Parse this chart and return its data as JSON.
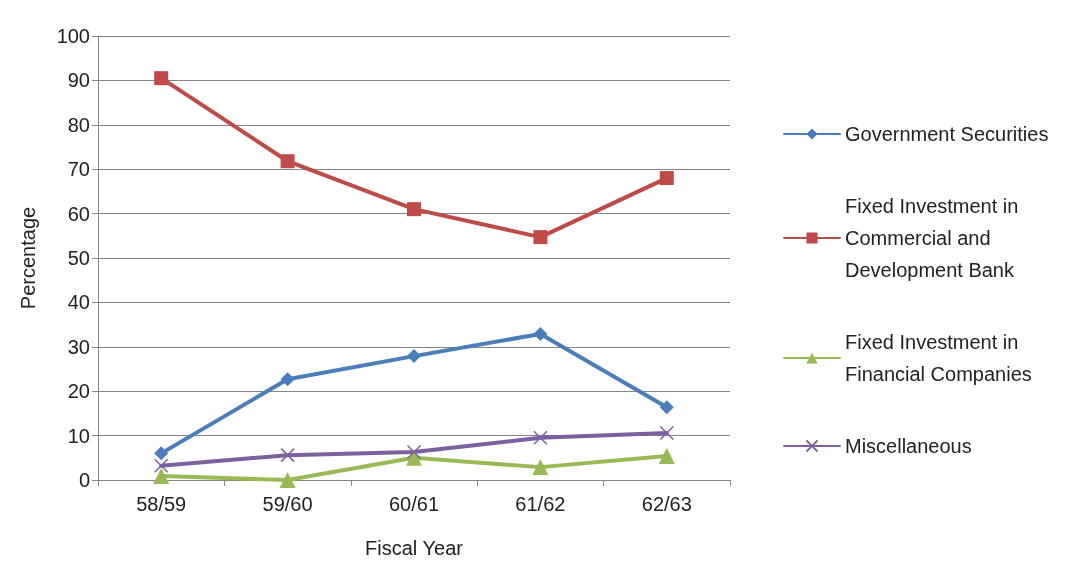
{
  "chart_data": {
    "type": "line",
    "xlabel": "Fiscal Year",
    "ylabel": "Percentage",
    "categories": [
      "58/59",
      "59/60",
      "60/61",
      "61/62",
      "62/63"
    ],
    "series": [
      {
        "name": "Government Securities",
        "color": "#4a7ebb",
        "marker": "diamond",
        "values": [
          6,
          22.7,
          27.9,
          32.9,
          16.4
        ]
      },
      {
        "name": "Fixed Investment in Commercial and Development Bank",
        "color": "#be4b48",
        "marker": "square",
        "values": [
          90.5,
          71.8,
          61,
          54.7,
          68
        ]
      },
      {
        "name": "Fixed Investment in Financial Companies",
        "color": "#98b954",
        "marker": "triangle",
        "values": [
          0.9,
          0,
          5,
          2.9,
          5.4
        ]
      },
      {
        "name": "Miscellaneous",
        "color": "#7d60a0",
        "marker": "cross",
        "values": [
          3.2,
          5.6,
          6.3,
          9.5,
          10.6
        ]
      }
    ],
    "ylim": [
      0,
      100
    ],
    "yticks": [
      0,
      10,
      20,
      30,
      40,
      50,
      60,
      70,
      80,
      90,
      100
    ],
    "grid": "y",
    "legend": "right",
    "line_style": "solid"
  }
}
